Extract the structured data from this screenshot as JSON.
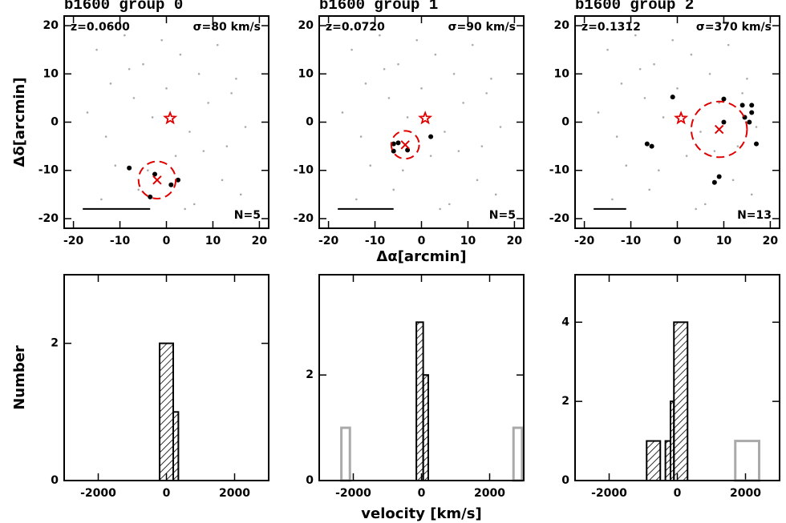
{
  "chart_data": [
    {
      "type": "scatter",
      "title": "b1600 group 0",
      "redshift_label": "z=0.0600",
      "dispersion_label": "σ=80 km/s",
      "count_label": "N=5",
      "ylabel": "Δδ[arcmin]",
      "xlim": [
        -22,
        22
      ],
      "ylim": [
        -22,
        22
      ],
      "xticks": [
        -20,
        -10,
        0,
        10,
        20
      ],
      "yticks": [
        -20,
        -10,
        0,
        10,
        20
      ],
      "background": {
        "color": "#aaaaaa",
        "x": [
          -15,
          -12,
          -9,
          -5,
          -1,
          3,
          7,
          11,
          15,
          -17,
          -13,
          -7,
          -3,
          5,
          9,
          13,
          17,
          -11,
          -6,
          2,
          6,
          12,
          -14,
          -4,
          8,
          14,
          -8,
          0,
          4,
          16
        ],
        "y": [
          15,
          8,
          18,
          12,
          17,
          14,
          10,
          16,
          9,
          2,
          -3,
          5,
          1,
          -2,
          4,
          -5,
          -1,
          -9,
          -14,
          -7,
          -17,
          -12,
          -16,
          -10,
          -6,
          6,
          11,
          7,
          -18,
          -15
        ]
      },
      "members": {
        "color": "#000000",
        "x": [
          -8,
          -2.5,
          -3.5,
          1,
          2.5
        ],
        "y": [
          -9.5,
          -10.8,
          -15.5,
          -13,
          -12
        ]
      },
      "center": {
        "color": "#e00000",
        "x": -2,
        "y": -12,
        "radius": 4
      },
      "bcg": {
        "x": 0.8,
        "y": 0.8
      },
      "scale_bar": {
        "x": [
          -18,
          -3.5
        ],
        "y": -18
      }
    },
    {
      "type": "scatter",
      "title": "b1600 group 1",
      "redshift_label": "z=0.0720",
      "dispersion_label": "σ=90 km/s",
      "count_label": "N=5",
      "xlabel": "Δα[arcmin]",
      "xlim": [
        -22,
        22
      ],
      "ylim": [
        -22,
        22
      ],
      "xticks": [
        -20,
        -10,
        0,
        10,
        20
      ],
      "yticks": [
        -20,
        -10,
        0,
        10,
        20
      ],
      "background": {
        "color": "#aaaaaa",
        "x": [
          -15,
          -12,
          -9,
          -5,
          -1,
          3,
          7,
          11,
          15,
          -17,
          -13,
          -7,
          -3,
          5,
          9,
          13,
          17,
          -11,
          -6,
          2,
          6,
          12,
          -14,
          -4,
          8,
          14,
          -8,
          0,
          4,
          16
        ],
        "y": [
          15,
          8,
          18,
          12,
          17,
          14,
          10,
          16,
          9,
          2,
          -3,
          5,
          1,
          -2,
          4,
          -5,
          -1,
          -9,
          -14,
          -7,
          -17,
          -12,
          -16,
          -10,
          -6,
          6,
          11,
          7,
          -18,
          -15
        ]
      },
      "members": {
        "color": "#000000",
        "x": [
          -6,
          -5,
          -6,
          -3,
          2
        ],
        "y": [
          -4.5,
          -4.3,
          -6,
          -5.8,
          -3
        ]
      },
      "center": {
        "color": "#e00000",
        "x": -3.5,
        "y": -4.7,
        "radius": 3
      },
      "bcg": {
        "x": 0.8,
        "y": 0.8
      },
      "scale_bar": {
        "x": [
          -18,
          -6
        ],
        "y": -18
      }
    },
    {
      "type": "scatter",
      "title": "b1600 group 2",
      "redshift_label": "z=0.1312",
      "dispersion_label": "σ=370 km/s",
      "count_label": "N=13",
      "xlim": [
        -22,
        22
      ],
      "ylim": [
        -22,
        22
      ],
      "xticks": [
        -20,
        -10,
        0,
        10,
        20
      ],
      "yticks": [
        -20,
        -10,
        0,
        10,
        20
      ],
      "background": {
        "color": "#aaaaaa",
        "x": [
          -15,
          -12,
          -9,
          -5,
          -1,
          3,
          7,
          11,
          15,
          -17,
          -13,
          -7,
          -3,
          5,
          9,
          13,
          17,
          -11,
          -6,
          2,
          6,
          12,
          -14,
          -4,
          8,
          14,
          -8,
          0,
          4,
          16
        ],
        "y": [
          15,
          8,
          18,
          12,
          17,
          14,
          10,
          16,
          9,
          2,
          -3,
          5,
          1,
          -2,
          4,
          -5,
          -1,
          -9,
          -14,
          -7,
          -17,
          -12,
          -16,
          -10,
          -6,
          6,
          11,
          7,
          -18,
          -15
        ]
      },
      "members": {
        "color": "#000000",
        "x": [
          -6.5,
          -5.5,
          -1,
          10,
          14,
          16,
          16,
          14.5,
          15.5,
          17,
          10,
          8,
          9
        ],
        "y": [
          -4.5,
          -5,
          5.2,
          4.8,
          3.5,
          3.5,
          2,
          1,
          0,
          -4.5,
          0,
          -12.5,
          -11.3
        ]
      },
      "center": {
        "color": "#e00000",
        "x": 9,
        "y": -1.5,
        "radius": 6
      },
      "bcg": {
        "x": 0.8,
        "y": 0.8
      },
      "scale_bar": {
        "x": [
          -18,
          -11
        ],
        "y": -18
      }
    },
    {
      "type": "histogram",
      "ylabel": "Number",
      "xlim": [
        -3000,
        3000
      ],
      "ylim": [
        0,
        3
      ],
      "xticks": [
        -2000,
        0,
        2000
      ],
      "yticks": [
        0,
        2
      ],
      "bins": [
        -200,
        200,
        350
      ],
      "values": [
        2,
        1
      ],
      "color": "#000000",
      "others": {
        "color": "#aaaaaa",
        "bins": [],
        "values": []
      }
    },
    {
      "type": "histogram",
      "xlabel": "velocity [km/s]",
      "xlim": [
        -3000,
        3000
      ],
      "ylim": [
        0,
        3.9
      ],
      "xticks": [
        -2000,
        0,
        2000
      ],
      "yticks": [
        0,
        2
      ],
      "bins": [
        -150,
        50,
        200
      ],
      "values": [
        3,
        2
      ],
      "color": "#000000",
      "others": {
        "color": "#aaaaaa",
        "bins": [
          -2350,
          -2100,
          2700,
          2950
        ],
        "values": [
          1,
          0,
          1
        ]
      }
    },
    {
      "type": "histogram",
      "xlim": [
        -3000,
        3000
      ],
      "ylim": [
        0,
        5.2
      ],
      "xticks": [
        -2000,
        0,
        2000
      ],
      "yticks": [
        0,
        2,
        4
      ],
      "bins": [
        -900,
        -500,
        -350,
        -200,
        -100,
        300
      ],
      "values": [
        1,
        0,
        1,
        2,
        4
      ],
      "color": "#000000",
      "others": {
        "color": "#aaaaaa",
        "bins": [
          1700,
          2400
        ],
        "values": [
          1
        ]
      }
    }
  ]
}
